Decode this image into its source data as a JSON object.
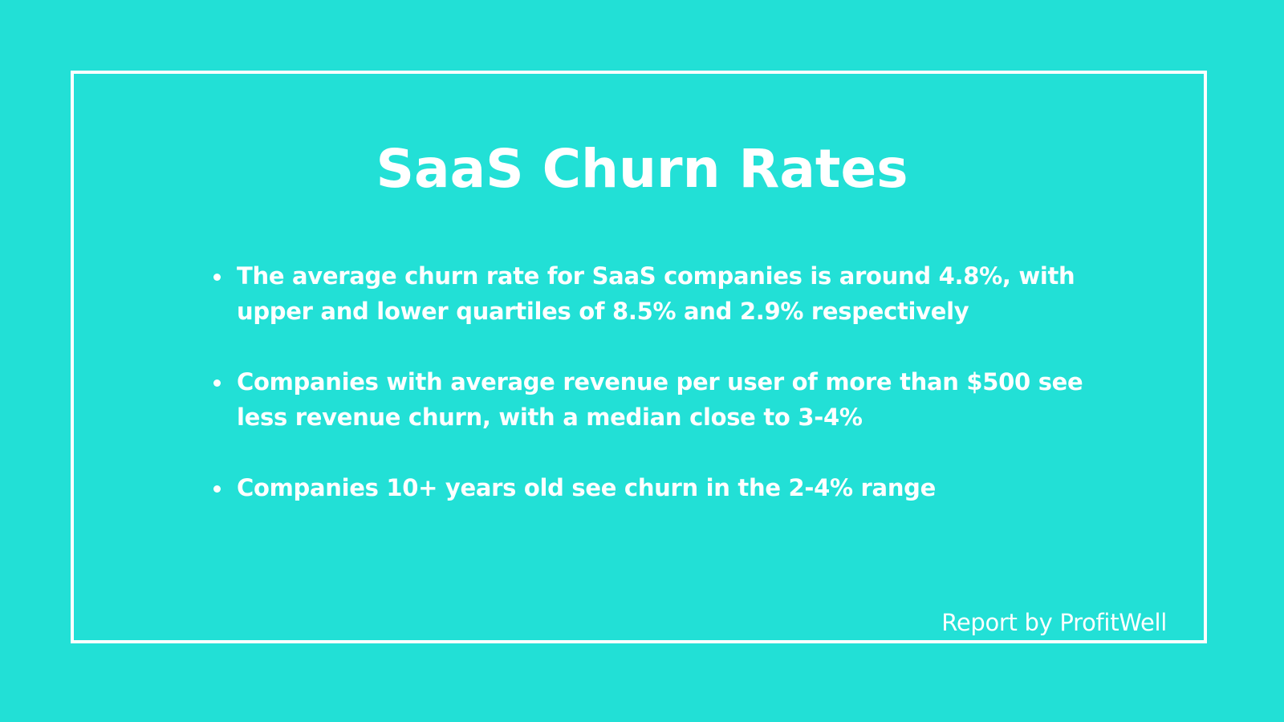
{
  "slide": {
    "title": "SaaS Churn Rates",
    "bullets": [
      {
        "text": "The average churn rate for SaaS companies is around 4.8%, with upper and lower quartiles of 8.5% and 2.9% respectively"
      },
      {
        "text": "Companies with average revenue per user of more than $500 see less revenue churn, with a median close to 3-4%"
      },
      {
        "text": "Companies 10+ years old see churn in the 2-4% range"
      }
    ],
    "credit": "Report by ProfitWell"
  },
  "colors": {
    "background": "#22e0d6",
    "text": "#ffffff",
    "frame": "#ffffff"
  }
}
